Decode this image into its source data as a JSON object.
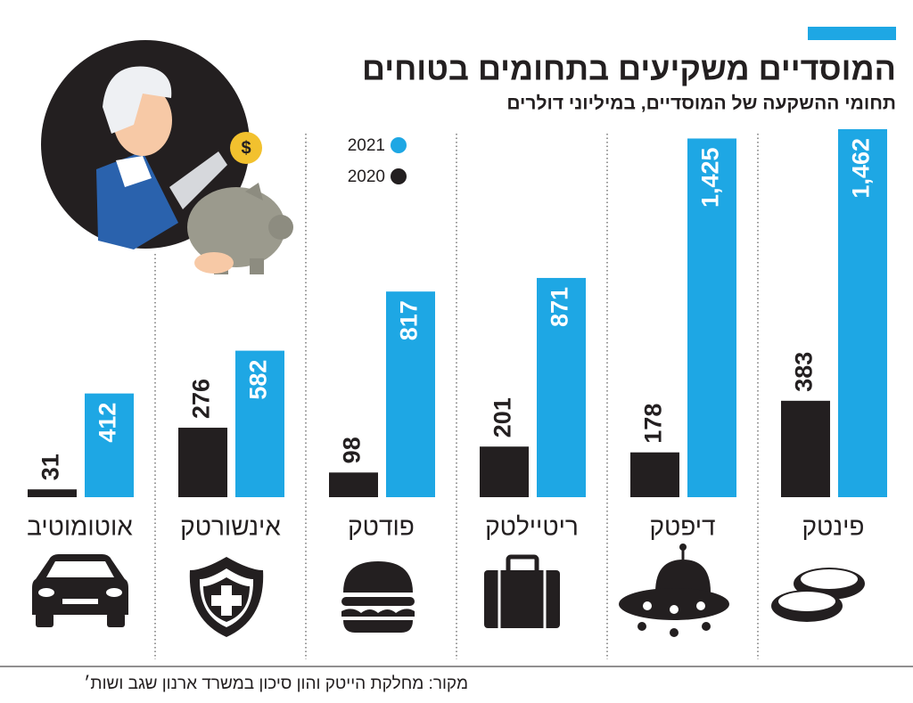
{
  "chart_data": {
    "type": "bar",
    "title": "המוסדיים משקיעים בתחומים בטוחים",
    "subtitle": "תחומי ההשקעה של המוסדיים, במיליוני דולרים",
    "categories": [
      "פינטק",
      "דיפטק",
      "ריטיילטק",
      "פודטק",
      "אינשורטק",
      "אוטומוטיב"
    ],
    "series": [
      {
        "name": "2020",
        "color": "#231f20",
        "values": [
          383,
          178,
          201,
          98,
          276,
          31
        ]
      },
      {
        "name": "2021",
        "color": "#1ea7e4",
        "values": [
          1462,
          1425,
          871,
          817,
          582,
          412
        ],
        "value_labels": [
          "1,462",
          "1,425",
          "871",
          "817",
          "582",
          "412"
        ]
      }
    ],
    "source": "מקור: מחלקת הייטק והון סיכון במשרד ארנון שגב ושות׳"
  }
}
